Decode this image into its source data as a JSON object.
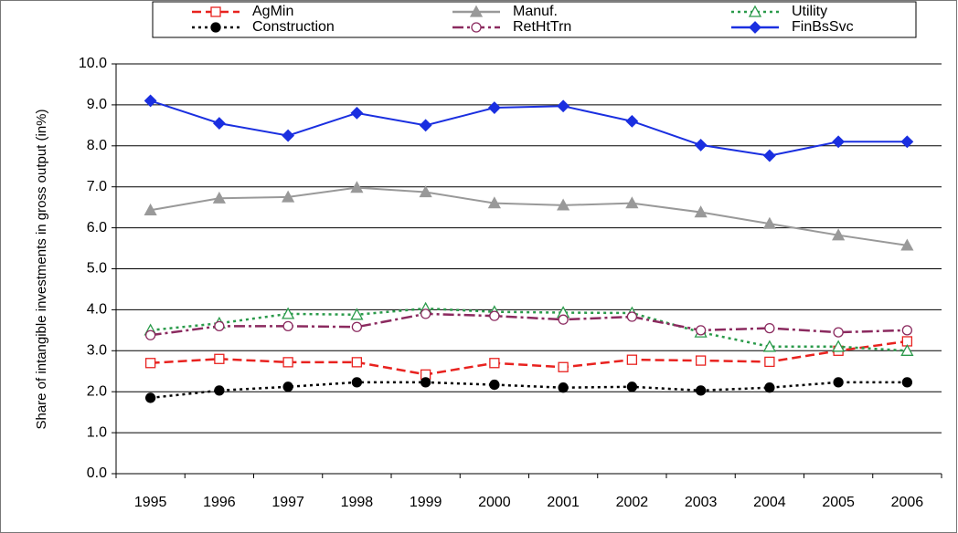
{
  "chart_data": {
    "type": "line",
    "y_label": "Share of intangible investments in gross output (in%)",
    "categories": [
      "1995",
      "1996",
      "1997",
      "1998",
      "1999",
      "2000",
      "2001",
      "2002",
      "2003",
      "2004",
      "2005",
      "2006"
    ],
    "ylim": [
      0,
      10
    ],
    "yticks": [
      {
        "value": 0,
        "label": "0.0"
      },
      {
        "value": 1,
        "label": "1.0"
      },
      {
        "value": 2,
        "label": "2.0"
      },
      {
        "value": 3,
        "label": "3.0"
      },
      {
        "value": 4,
        "label": "4.0"
      },
      {
        "value": 5,
        "label": "5.0"
      },
      {
        "value": 6,
        "label": "6.0"
      },
      {
        "value": 7,
        "label": "7.0"
      },
      {
        "value": 8,
        "label": "8.0"
      },
      {
        "value": 9,
        "label": "9.0"
      },
      {
        "value": 10,
        "label": "10.0"
      }
    ],
    "grid": true,
    "legend": "top",
    "series": [
      {
        "name": "AgMin",
        "color": "#e8221f",
        "style": "dashed",
        "marker": "square-open",
        "values": [
          2.7,
          2.8,
          2.72,
          2.72,
          2.42,
          2.7,
          2.6,
          2.78,
          2.76,
          2.73,
          3.0,
          3.23
        ]
      },
      {
        "name": "Manuf.",
        "color": "#999999",
        "style": "solid",
        "marker": "triangle",
        "values": [
          6.43,
          6.72,
          6.75,
          6.98,
          6.87,
          6.6,
          6.55,
          6.6,
          6.38,
          6.1,
          5.82,
          5.57
        ]
      },
      {
        "name": "Utility",
        "color": "#2a9a4a",
        "style": "dotted",
        "marker": "triangle-open",
        "values": [
          3.5,
          3.67,
          3.9,
          3.88,
          4.03,
          3.95,
          3.93,
          3.92,
          3.45,
          3.1,
          3.1,
          3.0
        ]
      },
      {
        "name": "Construction",
        "color": "#000000",
        "style": "dotted",
        "marker": "circle",
        "values": [
          1.85,
          2.03,
          2.12,
          2.23,
          2.23,
          2.17,
          2.1,
          2.12,
          2.03,
          2.1,
          2.23,
          2.23
        ]
      },
      {
        "name": "RetHtTrn",
        "color": "#8b2a5f",
        "style": "dashdot",
        "marker": "circle-open",
        "values": [
          3.38,
          3.6,
          3.6,
          3.58,
          3.9,
          3.85,
          3.76,
          3.83,
          3.5,
          3.55,
          3.45,
          3.5
        ]
      },
      {
        "name": "FinBsSvc",
        "color": "#1a2fe0",
        "style": "solid",
        "marker": "diamond",
        "values": [
          9.1,
          8.55,
          8.25,
          8.8,
          8.5,
          8.93,
          8.97,
          8.6,
          8.02,
          7.76,
          8.1,
          8.1
        ]
      }
    ]
  }
}
